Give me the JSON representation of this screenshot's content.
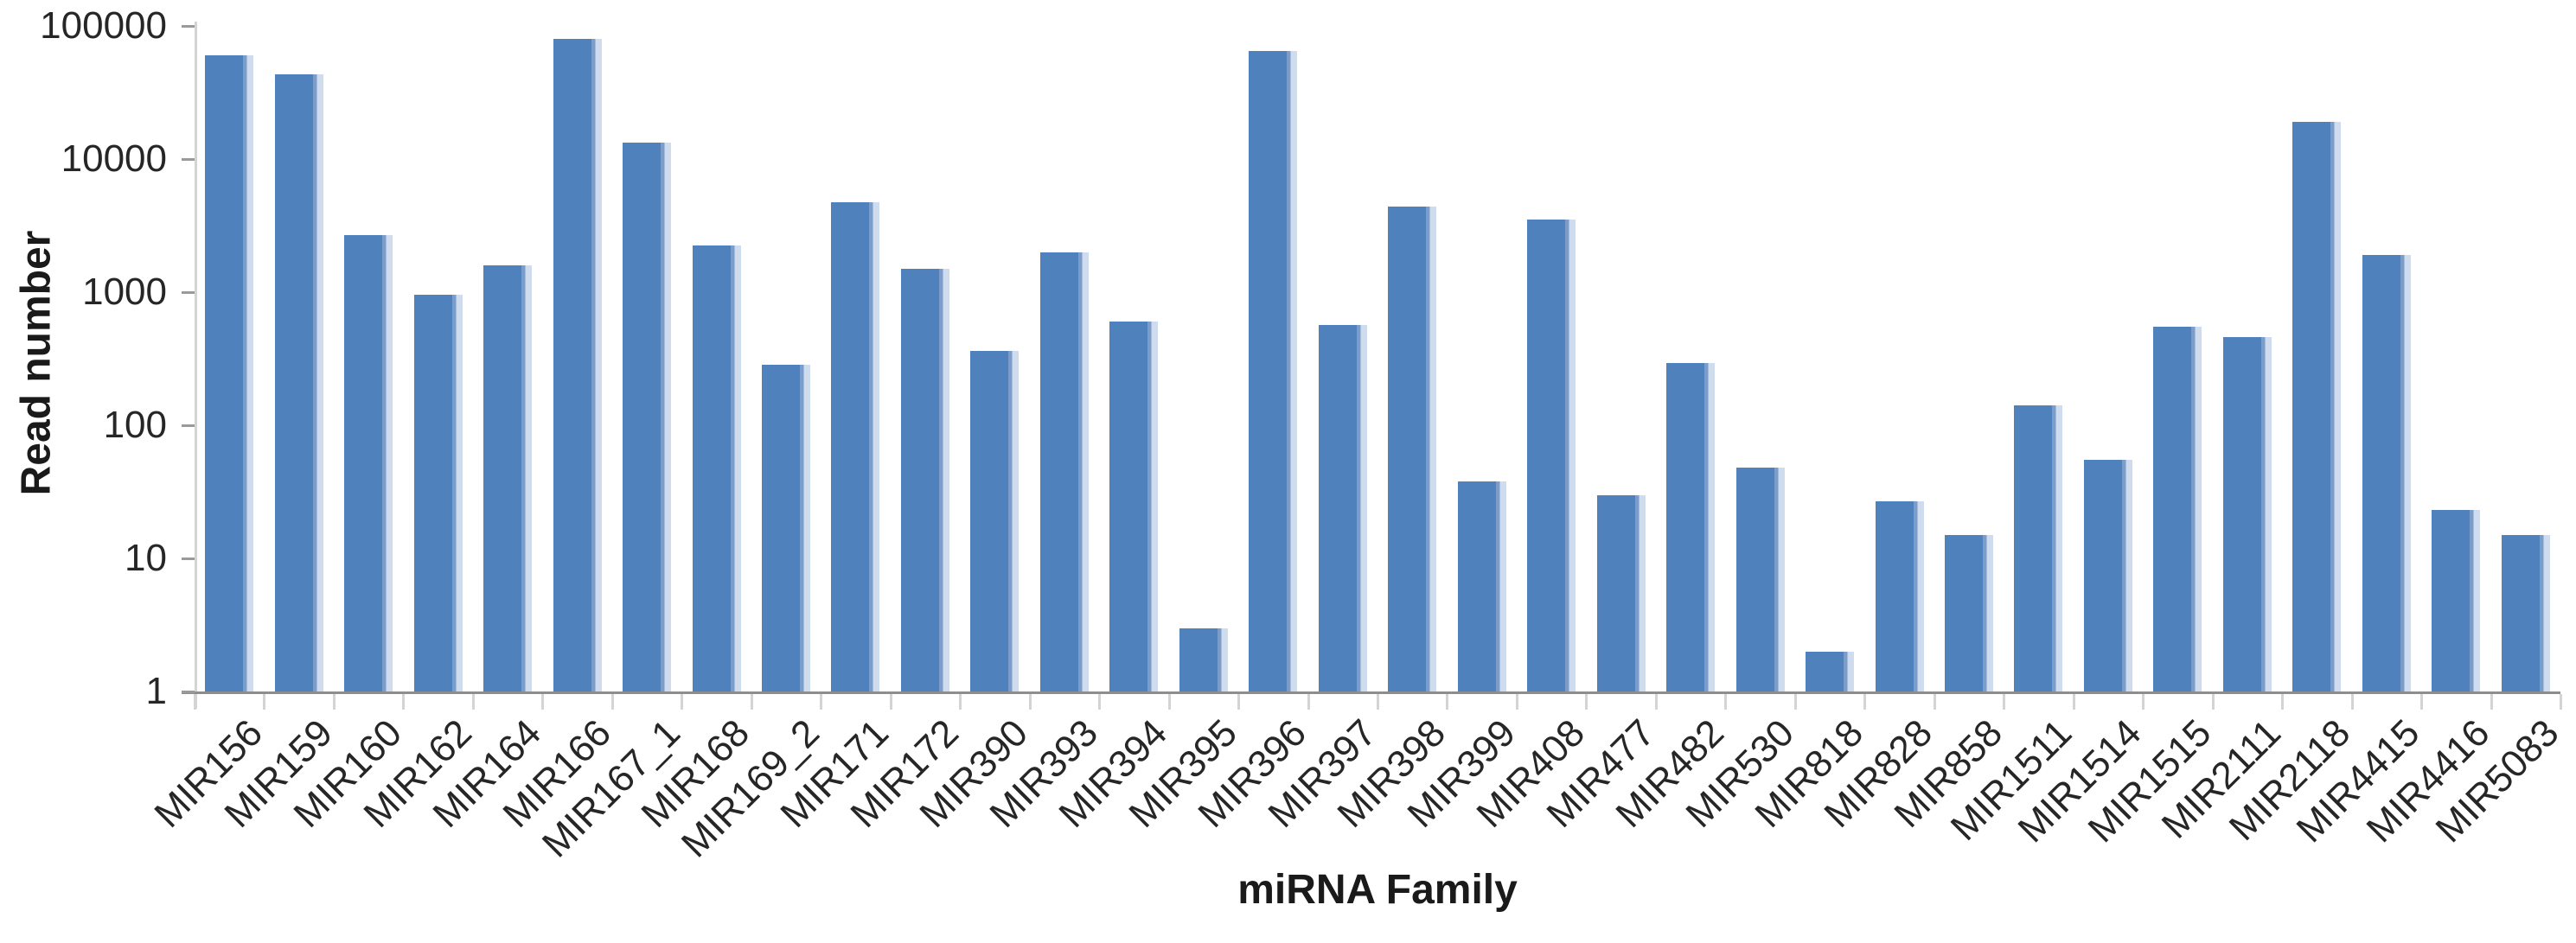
{
  "chart_data": {
    "type": "bar",
    "title": "",
    "xlabel": "miRNA Family",
    "ylabel": "Read number",
    "y_scale": "log10",
    "ylim": [
      1,
      100000
    ],
    "yticks": [
      1,
      10,
      100,
      1000,
      10000,
      100000
    ],
    "ytick_labels": [
      "1",
      "10",
      "100",
      "1000",
      "10000",
      "100000"
    ],
    "grid": false,
    "legend": false,
    "bar_color": "#4f81bd",
    "bar_edge_color": "#cfdcee",
    "baseline_color": "#8e8e8e",
    "axis_line_color": "#d4d4d4",
    "categories": [
      "MIR156",
      "MIR159",
      "MIR160",
      "MIR162",
      "MIR164",
      "MIR166",
      "MIR167_1",
      "MIR168",
      "MIR169_2",
      "MIR171",
      "MIR172",
      "MIR390",
      "MIR393",
      "MIR394",
      "MIR395",
      "MIR396",
      "MIR397",
      "MIR398",
      "MIR399",
      "MIR408",
      "MIR477",
      "MIR482",
      "MIR530",
      "MIR818",
      "MIR828",
      "MIR858",
      "MIR1511",
      "MIR1514",
      "MIR1515",
      "MIR2111",
      "MIR2118",
      "MIR4415",
      "MIR4416",
      "MIR5083"
    ],
    "values": [
      60000,
      43000,
      2700,
      960,
      1600,
      80000,
      13300,
      2250,
      285,
      4700,
      1500,
      360,
      2000,
      600,
      3,
      65000,
      570,
      4400,
      38,
      3500,
      30,
      295,
      48,
      2,
      27,
      15,
      140,
      55,
      550,
      460,
      19000,
      1900,
      23,
      15
    ]
  }
}
